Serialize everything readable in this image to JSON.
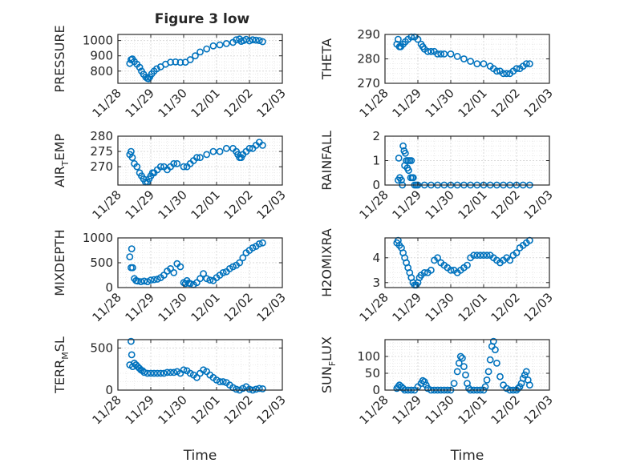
{
  "figure": {
    "title": "Figure 3 low",
    "series_color": "#0072BD"
  },
  "chart_data": [
    {
      "type": "scatter",
      "title": "Figure 3 low",
      "ylabel": "PRESSURE",
      "ylabel_sub": null,
      "ylim": [
        720,
        1040
      ],
      "yticks": [
        800,
        900,
        1000
      ],
      "xlim": [
        0,
        5
      ],
      "xticks": [
        0,
        1,
        2,
        3,
        4,
        5
      ],
      "xtick_labels": [
        "11/28",
        "11/29",
        "11/30",
        "12/01",
        "12/02",
        "12/03"
      ],
      "xlabel": "",
      "grid": true,
      "series": [
        {
          "x": [
            0.36,
            0.4,
            0.44,
            0.5,
            0.58,
            0.66,
            0.72,
            0.78,
            0.85,
            0.9,
            0.93,
            0.97,
            1.03,
            1.1,
            1.18,
            1.3,
            1.45,
            1.6,
            1.75,
            1.9,
            2.05,
            2.2,
            2.35,
            2.5,
            2.7,
            2.9,
            3.1,
            3.3,
            3.5,
            3.6,
            3.7,
            3.75,
            3.82,
            3.9,
            4.0,
            4.1,
            4.2,
            4.3,
            4.4
          ],
          "y": [
            850,
            875,
            880,
            862,
            845,
            825,
            800,
            780,
            760,
            752,
            750,
            762,
            782,
            800,
            815,
            828,
            845,
            858,
            860,
            857,
            858,
            875,
            900,
            925,
            945,
            965,
            972,
            980,
            988,
            1005,
            1010,
            995,
            1000,
            1008,
            998,
            1005,
            1003,
            1000,
            993
          ]
        }
      ]
    },
    {
      "type": "scatter",
      "title": "",
      "ylabel": "THETA",
      "ylabel_sub": null,
      "ylim": [
        270,
        290
      ],
      "yticks": [
        270,
        280,
        290
      ],
      "xlim": [
        0,
        5
      ],
      "xticks": [
        0,
        1,
        2,
        3,
        4,
        5
      ],
      "xtick_labels": [
        "11/28",
        "11/29",
        "11/30",
        "12/01",
        "12/02",
        "12/03"
      ],
      "xlabel": "",
      "grid": true,
      "series": [
        {
          "x": [
            0.36,
            0.4,
            0.44,
            0.48,
            0.55,
            0.62,
            0.7,
            0.8,
            0.9,
            1.0,
            1.1,
            1.15,
            1.2,
            1.3,
            1.4,
            1.5,
            1.6,
            1.7,
            1.8,
            2.0,
            2.2,
            2.4,
            2.6,
            2.8,
            3.0,
            3.2,
            3.3,
            3.4,
            3.5,
            3.6,
            3.7,
            3.8,
            3.9,
            4.0,
            4.1,
            4.2,
            4.3,
            4.4
          ],
          "y": [
            286,
            288,
            285,
            285,
            286,
            287,
            288,
            289,
            289,
            288,
            286,
            285,
            284,
            283,
            283,
            283,
            282,
            282,
            282,
            282,
            281,
            280,
            279,
            278,
            278,
            277,
            276,
            275,
            275,
            274,
            274,
            274,
            275,
            276,
            276,
            277,
            278,
            278
          ]
        }
      ]
    },
    {
      "type": "scatter",
      "title": "",
      "ylabel": "AIR",
      "ylabel_sub": "T",
      "ylabel_suffix": "EMP",
      "ylim": [
        264,
        280
      ],
      "yticks": [
        270,
        275,
        280
      ],
      "xlim": [
        0,
        5
      ],
      "xticks": [
        0,
        1,
        2,
        3,
        4,
        5
      ],
      "xtick_labels": [
        "11/28",
        "11/29",
        "11/30",
        "12/01",
        "12/02",
        "12/03"
      ],
      "xlabel": "",
      "grid": true,
      "series": [
        {
          "x": [
            0.36,
            0.4,
            0.44,
            0.5,
            0.58,
            0.66,
            0.72,
            0.78,
            0.84,
            0.9,
            0.95,
            1.0,
            1.05,
            1.1,
            1.2,
            1.3,
            1.4,
            1.5,
            1.6,
            1.7,
            1.8,
            2.0,
            2.1,
            2.2,
            2.3,
            2.4,
            2.5,
            2.7,
            2.9,
            3.1,
            3.3,
            3.5,
            3.6,
            3.65,
            3.7,
            3.75,
            3.8,
            3.9,
            4.0,
            4.1,
            4.2,
            4.3,
            4.4
          ],
          "y": [
            274,
            275,
            273,
            271,
            270,
            268,
            267,
            266,
            265,
            265,
            266,
            267,
            268,
            268,
            269,
            270,
            270,
            269,
            270,
            271,
            271,
            270,
            270,
            271,
            272,
            273,
            273,
            274,
            275,
            275,
            276,
            276,
            275,
            274,
            273,
            273,
            274,
            275,
            276,
            276,
            277,
            278,
            277
          ]
        }
      ]
    },
    {
      "type": "scatter",
      "title": "",
      "ylabel": "RAINFALL",
      "ylabel_sub": null,
      "ylim": [
        0,
        2
      ],
      "yticks": [
        0,
        1,
        2
      ],
      "xlim": [
        0,
        5
      ],
      "xticks": [
        0,
        1,
        2,
        3,
        4,
        5
      ],
      "xtick_labels": [
        "11/28",
        "11/29",
        "11/30",
        "12/01",
        "12/02",
        "12/03"
      ],
      "xlabel": "",
      "grid": true,
      "series": [
        {
          "x": [
            0.4,
            0.42,
            0.45,
            0.5,
            0.53,
            0.55,
            0.58,
            0.6,
            0.62,
            0.65,
            0.68,
            0.7,
            0.72,
            0.75,
            0.78,
            0.8,
            0.83,
            0.86,
            0.9,
            0.95,
            1.0,
            1.2,
            1.4,
            1.6,
            1.8,
            2.0,
            2.2,
            2.4,
            2.6,
            2.8,
            3.0,
            3.2,
            3.4,
            3.6,
            3.8,
            4.0,
            4.2,
            4.4
          ],
          "y": [
            0.2,
            1.1,
            0.3,
            0.2,
            0.0,
            1.6,
            1.4,
            0.8,
            1.3,
            1.0,
            0.7,
            1.0,
            0.6,
            1.0,
            0.3,
            1.0,
            0.3,
            0.3,
            0.0,
            0.0,
            0.0,
            0.0,
            0.0,
            0.0,
            0.0,
            0.0,
            0.0,
            0.0,
            0.0,
            0.0,
            0.0,
            0.0,
            0.0,
            0.0,
            0.0,
            0.0,
            0.0,
            0.0
          ]
        }
      ]
    },
    {
      "type": "scatter",
      "title": "",
      "ylabel": "MIXDEPTH",
      "ylabel_sub": null,
      "ylim": [
        0,
        1000
      ],
      "yticks": [
        0,
        500,
        1000
      ],
      "xlim": [
        0,
        5
      ],
      "xticks": [
        0,
        1,
        2,
        3,
        4,
        5
      ],
      "xtick_labels": [
        "11/28",
        "11/29",
        "11/30",
        "12/01",
        "12/02",
        "12/03"
      ],
      "xlabel": "",
      "grid": true,
      "series": [
        {
          "x": [
            0.36,
            0.4,
            0.42,
            0.45,
            0.5,
            0.55,
            0.6,
            0.7,
            0.8,
            0.9,
            1.0,
            1.1,
            1.2,
            1.3,
            1.4,
            1.5,
            1.6,
            1.7,
            1.8,
            1.9,
            2.0,
            2.05,
            2.1,
            2.15,
            2.2,
            2.3,
            2.4,
            2.5,
            2.6,
            2.7,
            2.8,
            2.9,
            3.0,
            3.1,
            3.2,
            3.3,
            3.4,
            3.5,
            3.6,
            3.7,
            3.8,
            3.9,
            4.0,
            4.1,
            4.2,
            4.3,
            4.4
          ],
          "y": [
            620,
            400,
            780,
            400,
            180,
            140,
            130,
            120,
            130,
            120,
            150,
            160,
            170,
            200,
            250,
            330,
            380,
            300,
            480,
            420,
            100,
            80,
            140,
            90,
            80,
            60,
            100,
            180,
            280,
            180,
            150,
            140,
            200,
            250,
            300,
            320,
            380,
            420,
            450,
            500,
            600,
            700,
            750,
            800,
            830,
            880,
            900
          ]
        }
      ]
    },
    {
      "type": "scatter",
      "title": "",
      "ylabel": "H2OMIXRA",
      "ylabel_sub": null,
      "ylim": [
        2.8,
        4.8
      ],
      "yticks": [
        3,
        4
      ],
      "xlim": [
        0,
        5
      ],
      "xticks": [
        0,
        1,
        2,
        3,
        4,
        5
      ],
      "xtick_labels": [
        "11/28",
        "11/29",
        "11/30",
        "12/01",
        "12/02",
        "12/03"
      ],
      "xlabel": "",
      "grid": true,
      "series": [
        {
          "x": [
            0.36,
            0.4,
            0.44,
            0.5,
            0.55,
            0.6,
            0.65,
            0.7,
            0.75,
            0.8,
            0.85,
            0.9,
            0.95,
            1.0,
            1.05,
            1.1,
            1.2,
            1.3,
            1.4,
            1.5,
            1.6,
            1.7,
            1.8,
            1.9,
            2.0,
            2.1,
            2.2,
            2.3,
            2.4,
            2.5,
            2.6,
            2.7,
            2.8,
            2.9,
            3.0,
            3.1,
            3.2,
            3.3,
            3.4,
            3.5,
            3.6,
            3.7,
            3.8,
            3.9,
            4.0,
            4.1,
            4.2,
            4.3,
            4.4
          ],
          "y": [
            4.6,
            4.7,
            4.5,
            4.4,
            4.2,
            4.0,
            3.8,
            3.6,
            3.4,
            3.2,
            3.0,
            2.9,
            2.9,
            3.0,
            3.2,
            3.3,
            3.4,
            3.4,
            3.5,
            3.9,
            4.0,
            3.8,
            3.7,
            3.6,
            3.5,
            3.5,
            3.4,
            3.5,
            3.6,
            3.7,
            4.0,
            4.1,
            4.1,
            4.1,
            4.1,
            4.1,
            4.1,
            4.0,
            3.9,
            3.8,
            3.9,
            4.0,
            3.9,
            4.1,
            4.2,
            4.4,
            4.5,
            4.6,
            4.7
          ]
        }
      ]
    },
    {
      "type": "scatter",
      "title": "",
      "ylabel": "TERR",
      "ylabel_sub": "M",
      "ylabel_suffix": "SL",
      "ylim": [
        0,
        600
      ],
      "yticks": [
        0,
        500
      ],
      "xlim": [
        0,
        5
      ],
      "xticks": [
        0,
        1,
        2,
        3,
        4,
        5
      ],
      "xtick_labels": [
        "11/28",
        "11/29",
        "11/30",
        "12/01",
        "12/02",
        "12/03"
      ],
      "xlabel": "Time",
      "grid": true,
      "series": [
        {
          "x": [
            0.36,
            0.4,
            0.42,
            0.45,
            0.5,
            0.55,
            0.6,
            0.65,
            0.7,
            0.75,
            0.8,
            0.9,
            1.0,
            1.1,
            1.2,
            1.3,
            1.4,
            1.5,
            1.6,
            1.7,
            1.8,
            1.9,
            2.0,
            2.1,
            2.2,
            2.3,
            2.4,
            2.5,
            2.6,
            2.7,
            2.8,
            2.9,
            3.0,
            3.1,
            3.2,
            3.3,
            3.4,
            3.5,
            3.6,
            3.7,
            3.8,
            3.9,
            4.0,
            4.1,
            4.2,
            4.3,
            4.4
          ],
          "y": [
            300,
            580,
            420,
            280,
            320,
            300,
            280,
            260,
            240,
            230,
            210,
            200,
            200,
            200,
            200,
            200,
            200,
            210,
            210,
            210,
            220,
            200,
            240,
            230,
            200,
            180,
            150,
            200,
            240,
            220,
            180,
            150,
            120,
            100,
            100,
            90,
            60,
            30,
            10,
            0,
            20,
            40,
            10,
            0,
            10,
            20,
            15
          ]
        }
      ]
    },
    {
      "type": "scatter",
      "title": "",
      "ylabel": "SUN",
      "ylabel_sub": "F",
      "ylabel_suffix": "LUX",
      "ylim": [
        0,
        150
      ],
      "yticks": [
        0,
        50,
        100
      ],
      "xlim": [
        0,
        5
      ],
      "xticks": [
        0,
        1,
        2,
        3,
        4,
        5
      ],
      "xtick_labels": [
        "11/28",
        "11/29",
        "11/30",
        "12/01",
        "12/02",
        "12/03"
      ],
      "xlabel": "Time",
      "grid": true,
      "series": [
        {
          "x": [
            0.36,
            0.4,
            0.44,
            0.5,
            0.55,
            0.6,
            0.7,
            0.8,
            0.9,
            1.0,
            1.1,
            1.15,
            1.2,
            1.25,
            1.3,
            1.4,
            1.5,
            1.6,
            1.7,
            1.8,
            1.9,
            2.0,
            2.1,
            2.2,
            2.25,
            2.3,
            2.35,
            2.4,
            2.45,
            2.5,
            2.55,
            2.6,
            2.7,
            2.8,
            2.9,
            3.0,
            3.05,
            3.1,
            3.15,
            3.2,
            3.25,
            3.3,
            3.35,
            3.4,
            3.5,
            3.6,
            3.7,
            3.8,
            3.9,
            4.0,
            4.05,
            4.1,
            4.15,
            4.2,
            4.25,
            4.3,
            4.35,
            4.4
          ],
          "y": [
            5,
            10,
            15,
            10,
            5,
            0,
            0,
            0,
            0,
            10,
            20,
            28,
            25,
            15,
            5,
            0,
            0,
            0,
            0,
            0,
            0,
            0,
            20,
            55,
            80,
            100,
            95,
            70,
            45,
            20,
            5,
            0,
            0,
            0,
            0,
            0,
            10,
            30,
            55,
            90,
            130,
            145,
            120,
            80,
            40,
            15,
            5,
            0,
            0,
            0,
            5,
            10,
            20,
            35,
            45,
            55,
            30,
            15
          ]
        }
      ]
    }
  ]
}
